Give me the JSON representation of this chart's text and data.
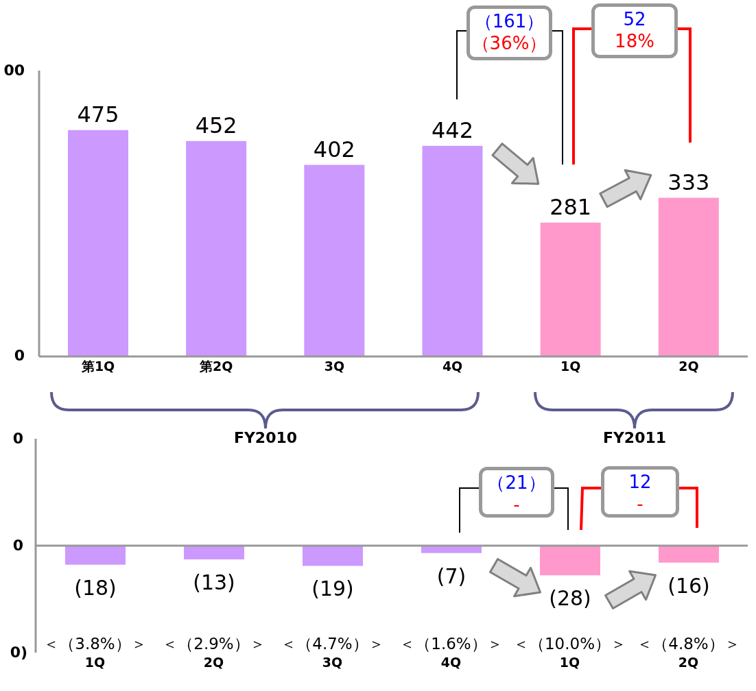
{
  "chart_data": [
    {
      "type": "bar",
      "categories": [
        "第1Q",
        "第2Q",
        "3Q",
        "4Q",
        "1Q",
        "2Q"
      ],
      "values": [
        475,
        452,
        402,
        442,
        281,
        333
      ],
      "colors": [
        "#cc99ff",
        "#cc99ff",
        "#cc99ff",
        "#cc99ff",
        "#ff99cc",
        "#ff99cc"
      ],
      "data_labels": true,
      "annotations": [
        "FY2010",
        "FY2011",
        "（161）",
        "（36%）",
        "52",
        "18%",
        "00",
        "0"
      ]
    },
    {
      "type": "bar",
      "categories": [
        "1Q",
        "2Q",
        "3Q",
        "4Q",
        "1Q",
        "2Q"
      ],
      "values": [
        -18,
        -13,
        -19,
        -7,
        -28,
        -16
      ],
      "value_labels": [
        "(18)",
        "(13)",
        "(19)",
        "(7)",
        "(28)",
        "(16)"
      ],
      "colors": [
        "#cc99ff",
        "#cc99ff",
        "#cc99ff",
        "#cc99ff",
        "#ff99cc",
        "#ff99cc"
      ],
      "annotations": [
        "＜（3.8%）＞",
        "＜（2.9%）＞",
        "＜（4.7%）＞",
        "＜（1.6%）＞",
        "＜（10.0%）＞",
        "＜（4.8%）＞",
        "（21）",
        "-",
        "12",
        "-",
        "0",
        "0",
        "0)"
      ]
    }
  ]
}
